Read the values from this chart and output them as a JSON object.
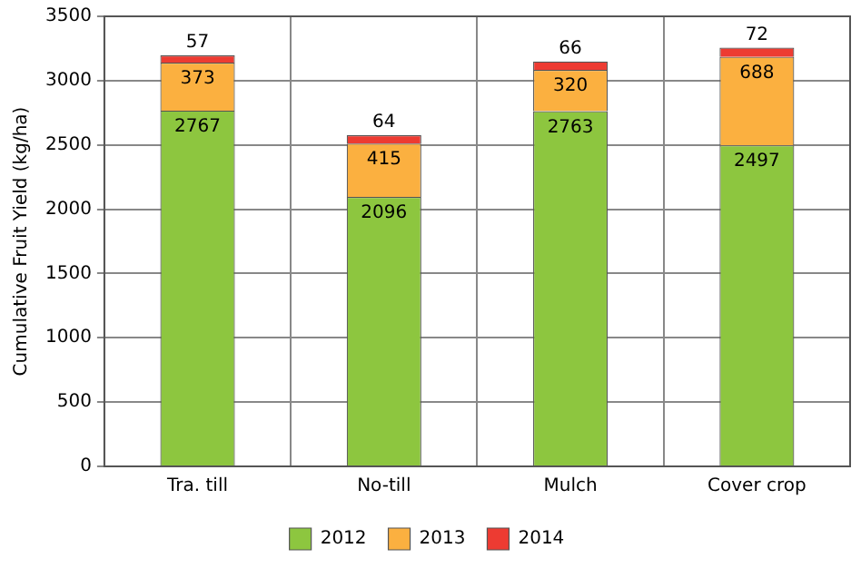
{
  "chart_data": {
    "type": "bar",
    "stacked": true,
    "ylabel": "Cumulative Fruit Yield (kg/ha)",
    "categories": [
      "Tra. till",
      "No-till",
      "Mulch",
      "Cover crop"
    ],
    "series": [
      {
        "name": "2012",
        "color": "#8dc63f",
        "values": [
          2767,
          2096,
          2763,
          2497
        ]
      },
      {
        "name": "2013",
        "color": "#fbb040",
        "values": [
          373,
          415,
          320,
          688
        ]
      },
      {
        "name": "2014",
        "color": "#ed3b32",
        "values": [
          57,
          64,
          66,
          72
        ]
      }
    ],
    "ylim": [
      0,
      3500
    ],
    "yticks": [
      0,
      500,
      1000,
      1500,
      2000,
      2500,
      3000,
      3500
    ],
    "grid": true,
    "legend": "bottom",
    "data_labels": true
  }
}
